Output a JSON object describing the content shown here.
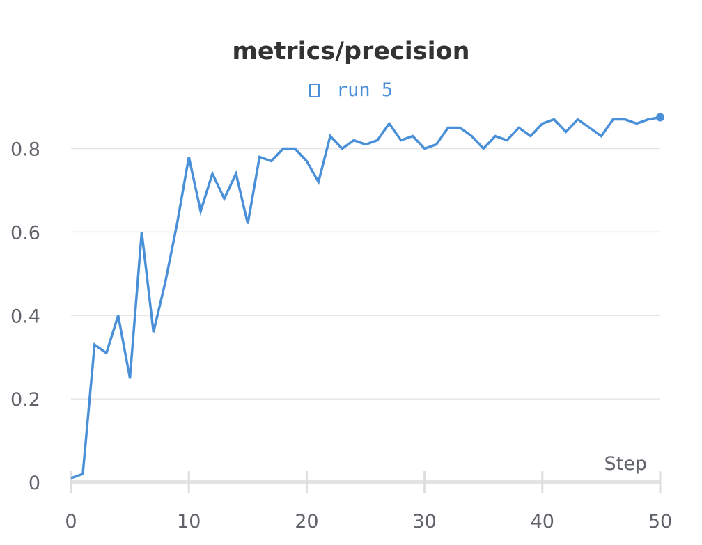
{
  "chart_data": {
    "type": "line",
    "title": "metrics/precision",
    "xlabel": "Step",
    "ylabel": "",
    "xlim": [
      0,
      50
    ],
    "ylim": [
      0,
      0.9
    ],
    "x_ticks": [
      0,
      10,
      20,
      30,
      40,
      50
    ],
    "y_ticks": [
      0,
      0.2,
      0.4,
      0.6,
      0.8
    ],
    "y_tick_labels": [
      "0",
      "0.2",
      "0.4",
      "0.6",
      "0.8"
    ],
    "grid": true,
    "legend_position": "top-center",
    "series": [
      {
        "name": "run 5",
        "color": "#4a90d9",
        "x": [
          0,
          1,
          2,
          3,
          4,
          5,
          6,
          7,
          8,
          9,
          10,
          11,
          12,
          13,
          14,
          15,
          16,
          17,
          18,
          19,
          20,
          21,
          22,
          23,
          24,
          25,
          26,
          27,
          28,
          29,
          30,
          31,
          32,
          33,
          34,
          35,
          36,
          37,
          38,
          39,
          40,
          41,
          42,
          43,
          44,
          45,
          46,
          47,
          48,
          49,
          50
        ],
        "values": [
          0.01,
          0.02,
          0.33,
          0.31,
          0.4,
          0.25,
          0.6,
          0.36,
          0.48,
          0.62,
          0.78,
          0.65,
          0.74,
          0.68,
          0.74,
          0.62,
          0.78,
          0.77,
          0.8,
          0.8,
          0.77,
          0.72,
          0.83,
          0.8,
          0.82,
          0.81,
          0.82,
          0.86,
          0.82,
          0.83,
          0.8,
          0.81,
          0.85,
          0.85,
          0.83,
          0.8,
          0.83,
          0.82,
          0.85,
          0.83,
          0.86,
          0.87,
          0.84,
          0.87,
          0.85,
          0.83,
          0.87,
          0.87,
          0.86,
          0.87,
          0.875
        ]
      }
    ]
  }
}
